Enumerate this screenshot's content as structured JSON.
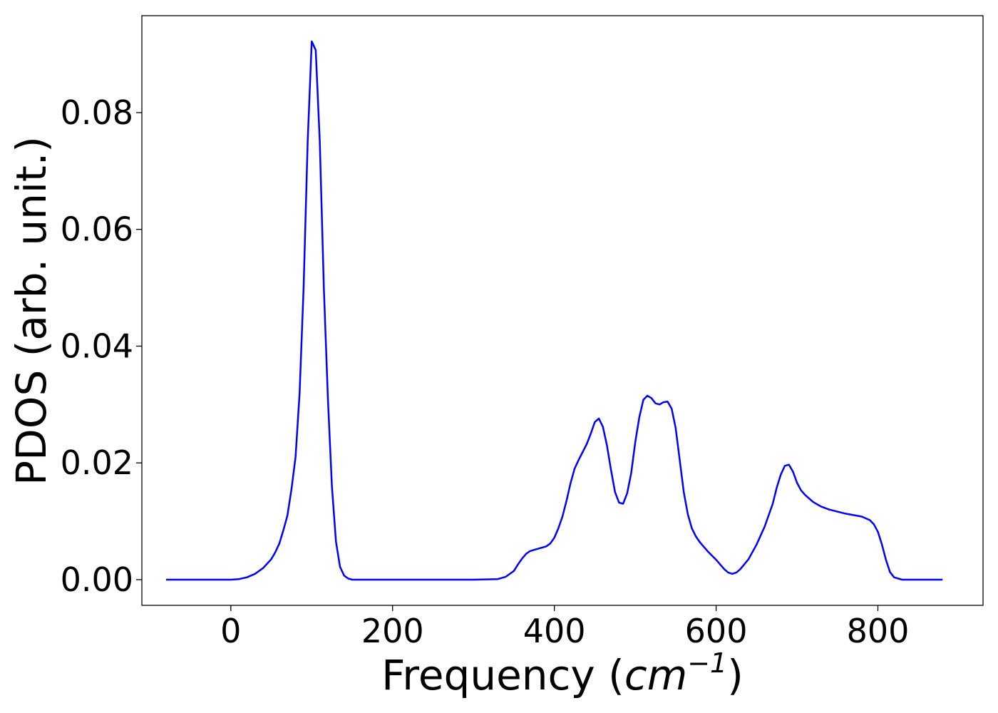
{
  "chart_data": {
    "type": "line",
    "title": "",
    "xlabel": "Frequency (",
    "xlabel_math": "cm",
    "xlabel_sup": "−1",
    "xlabel_close": ")",
    "ylabel": "PDOS (arb. unit.)",
    "xlim": [
      -110,
      930
    ],
    "ylim": [
      -0.0044,
      0.0966
    ],
    "xticks": [
      0,
      200,
      400,
      600,
      800
    ],
    "xtick_labels": [
      "0",
      "200",
      "400",
      "600",
      "800"
    ],
    "yticks": [
      0.0,
      0.02,
      0.04,
      0.06,
      0.08
    ],
    "ytick_labels": [
      "0.00",
      "0.02",
      "0.04",
      "0.06",
      "0.08"
    ],
    "grid": false,
    "legend": "none",
    "series": [
      {
        "color": "#0000ff",
        "x": [
          -80,
          0,
          10,
          20,
          30,
          40,
          50,
          55,
          60,
          65,
          70,
          75,
          80,
          85,
          90,
          95,
          100,
          105,
          110,
          115,
          120,
          125,
          130,
          135,
          140,
          145,
          150,
          170,
          200,
          300,
          330,
          340,
          350,
          355,
          360,
          365,
          370,
          375,
          380,
          390,
          395,
          400,
          405,
          410,
          415,
          420,
          425,
          430,
          440,
          445,
          450,
          455,
          460,
          465,
          470,
          475,
          480,
          485,
          490,
          495,
          500,
          505,
          510,
          515,
          520,
          525,
          530,
          535,
          540,
          545,
          550,
          555,
          560,
          565,
          570,
          575,
          580,
          590,
          600,
          610,
          615,
          620,
          625,
          630,
          640,
          650,
          660,
          670,
          675,
          680,
          685,
          690,
          695,
          700,
          705,
          710,
          720,
          730,
          740,
          760,
          780,
          790,
          795,
          800,
          805,
          810,
          815,
          820,
          830,
          850,
          880
        ],
        "y": [
          0,
          0,
          0.0001,
          0.0004,
          0.001,
          0.002,
          0.0035,
          0.0047,
          0.0062,
          0.0085,
          0.011,
          0.0155,
          0.021,
          0.032,
          0.05,
          0.075,
          0.0922,
          0.0907,
          0.075,
          0.05,
          0.031,
          0.016,
          0.0065,
          0.0022,
          0.0007,
          0.0002,
          0,
          0,
          0,
          0,
          0.0001,
          0.0005,
          0.0015,
          0.0026,
          0.0036,
          0.0044,
          0.0049,
          0.0051,
          0.0053,
          0.0057,
          0.0062,
          0.0072,
          0.0088,
          0.0108,
          0.0135,
          0.0165,
          0.019,
          0.0205,
          0.0232,
          0.025,
          0.027,
          0.0276,
          0.0262,
          0.023,
          0.0188,
          0.015,
          0.0132,
          0.013,
          0.0148,
          0.0182,
          0.0235,
          0.0278,
          0.0308,
          0.0315,
          0.0311,
          0.0302,
          0.03,
          0.0304,
          0.0305,
          0.0293,
          0.026,
          0.0205,
          0.015,
          0.0112,
          0.0088,
          0.0074,
          0.0064,
          0.0048,
          0.0034,
          0.0018,
          0.0012,
          0.001,
          0.0012,
          0.0018,
          0.0035,
          0.006,
          0.0091,
          0.013,
          0.0158,
          0.018,
          0.0195,
          0.0197,
          0.0185,
          0.0166,
          0.0153,
          0.0145,
          0.0133,
          0.0125,
          0.012,
          0.0113,
          0.0108,
          0.0102,
          0.0095,
          0.0082,
          0.006,
          0.0034,
          0.0013,
          0.0004,
          0,
          0,
          0
        ]
      }
    ]
  }
}
